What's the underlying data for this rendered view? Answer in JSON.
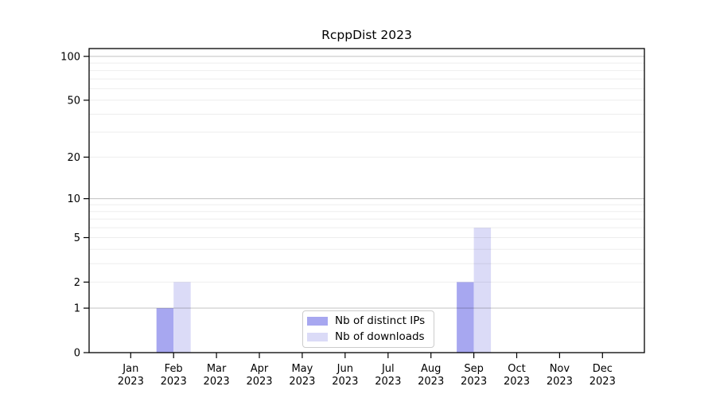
{
  "chart_data": {
    "type": "bar",
    "title": "RcppDist 2023",
    "categories": [
      "Jan",
      "Feb",
      "Mar",
      "Apr",
      "May",
      "Jun",
      "Jul",
      "Aug",
      "Sep",
      "Oct",
      "Nov",
      "Dec"
    ],
    "x_tick_year_line": "2023",
    "series": [
      {
        "name": "Nb of distinct IPs",
        "color": "#a7a7f0",
        "values": [
          0,
          1,
          0,
          0,
          0,
          0,
          0,
          0,
          2,
          0,
          0,
          0
        ]
      },
      {
        "name": "Nb of downloads",
        "color": "#dbdbf7",
        "values": [
          0,
          2,
          0,
          0,
          0,
          0,
          0,
          0,
          6,
          0,
          0,
          0
        ]
      }
    ],
    "y_axis": {
      "scale": "log10(1+x)",
      "range": [
        0,
        113
      ],
      "tick_values": [
        0,
        1,
        2,
        5,
        10,
        20,
        50,
        100
      ],
      "tick_labels": [
        "0",
        "1",
        "2",
        "5",
        "10",
        "20",
        "50",
        "100"
      ]
    },
    "gridlines": {
      "major_values": [
        1,
        10,
        100
      ],
      "minor_values": [
        2,
        3,
        4,
        5,
        6,
        7,
        8,
        9,
        20,
        30,
        40,
        50,
        60,
        70,
        80,
        90
      ],
      "major_color": "rgba(0,0,0,0.21)",
      "minor_color": "rgba(0,0,0,0.07)"
    },
    "legend": {
      "position": "lower center"
    },
    "axis_color": "#000000",
    "background_color": "#ffffff"
  }
}
